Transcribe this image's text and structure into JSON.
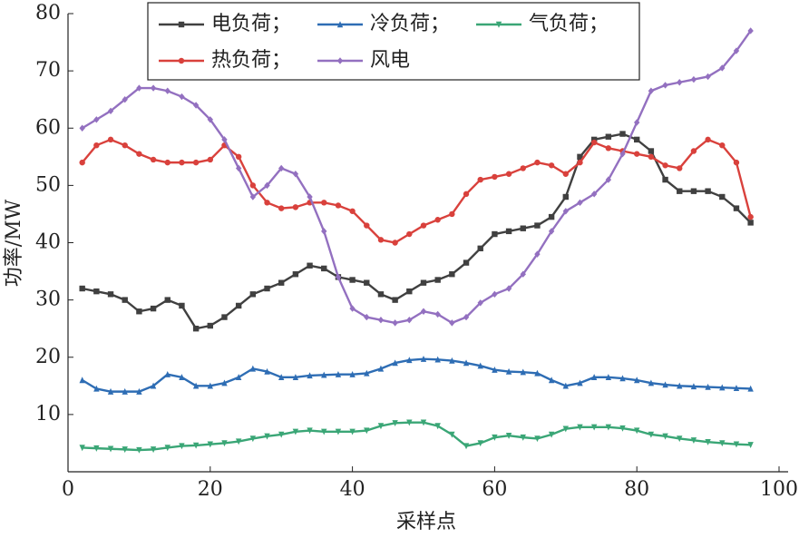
{
  "chart_data": {
    "type": "line",
    "xlabel": "采样点",
    "ylabel": "功率/MW",
    "x": [
      2,
      4,
      6,
      8,
      10,
      12,
      14,
      16,
      18,
      20,
      22,
      24,
      26,
      28,
      30,
      32,
      34,
      36,
      38,
      40,
      42,
      44,
      46,
      48,
      50,
      52,
      54,
      56,
      58,
      60,
      62,
      64,
      66,
      68,
      70,
      72,
      74,
      76,
      78,
      80,
      82,
      84,
      86,
      88,
      90,
      92,
      94,
      96
    ],
    "series": [
      {
        "name": "电负荷；",
        "color": "#404040",
        "marker": "square",
        "values": [
          32,
          31.5,
          31,
          30,
          28,
          28.5,
          30,
          29,
          25,
          25.5,
          27,
          29,
          31,
          32,
          33,
          34.5,
          36,
          35.5,
          34,
          33.5,
          33,
          31,
          30,
          31.5,
          33,
          33.5,
          34.5,
          36.5,
          39,
          41.5,
          42,
          42.5,
          43,
          44.5,
          48,
          55,
          58,
          58.5,
          59,
          58,
          56,
          51,
          49,
          49,
          49,
          48,
          46,
          43.5
        ]
      },
      {
        "name": "冷负荷；",
        "color": "#2e6db4",
        "marker": "triangle-up",
        "values": [
          16,
          14.5,
          14,
          14,
          14,
          15,
          17,
          16.5,
          15,
          15,
          15.5,
          16.5,
          18,
          17.5,
          16.5,
          16.5,
          16.8,
          16.9,
          17,
          17,
          17.2,
          18,
          19,
          19.5,
          19.7,
          19.6,
          19.4,
          19,
          18.5,
          17.8,
          17.5,
          17.4,
          17.2,
          16,
          15,
          15.5,
          16.5,
          16.5,
          16.3,
          16,
          15.5,
          15.2,
          15,
          14.9,
          14.8,
          14.7,
          14.6,
          14.5
        ]
      },
      {
        "name": "气负荷；",
        "color": "#3aa676",
        "marker": "triangle-down",
        "values": [
          4.2,
          4.1,
          4,
          3.9,
          3.8,
          3.9,
          4.2,
          4.5,
          4.6,
          4.8,
          5,
          5.3,
          5.8,
          6.2,
          6.5,
          7,
          7.2,
          7,
          7,
          7,
          7.2,
          8,
          8.5,
          8.6,
          8.6,
          8,
          6.5,
          4.5,
          5,
          6,
          6.3,
          6,
          5.8,
          6.5,
          7.5,
          7.8,
          7.8,
          7.8,
          7.6,
          7.2,
          6.5,
          6.2,
          5.8,
          5.5,
          5.2,
          5,
          4.8,
          4.7
        ]
      },
      {
        "name": "热负荷；",
        "color": "#d9413c",
        "marker": "circle",
        "values": [
          54,
          57,
          58,
          57,
          55.5,
          54.5,
          54,
          54,
          54,
          54.5,
          57,
          55,
          50,
          47,
          46,
          46.2,
          47,
          47,
          46.5,
          45.5,
          43,
          40.5,
          40,
          41.5,
          43,
          44,
          45,
          48.5,
          51,
          51.5,
          52,
          53,
          54,
          53.5,
          52,
          54,
          57.5,
          56.5,
          56,
          55.5,
          55,
          53.5,
          53,
          56,
          58,
          57,
          54,
          44.5
        ]
      },
      {
        "name": "风电",
        "color": "#9370c0",
        "marker": "diamond",
        "values": [
          60,
          61.5,
          63,
          65,
          67,
          67,
          66.5,
          65.5,
          64,
          61.5,
          58,
          53,
          48,
          50,
          53,
          52,
          48,
          42,
          34,
          28.5,
          27,
          26.5,
          26,
          26.5,
          28,
          27.5,
          26,
          27,
          29.5,
          31,
          32,
          34.5,
          38,
          42,
          45.5,
          47,
          48.5,
          51,
          55.5,
          61,
          66.5,
          67.5,
          68,
          68.5,
          69,
          70.5,
          73.5,
          77
        ]
      }
    ],
    "xlim": [
      0,
      100
    ],
    "xticks": [
      0,
      20,
      40,
      60,
      80,
      100
    ],
    "ylim": [
      0,
      80
    ],
    "yticks": [
      10,
      20,
      30,
      40,
      50,
      60,
      70,
      80
    ],
    "legend": "upper center"
  }
}
